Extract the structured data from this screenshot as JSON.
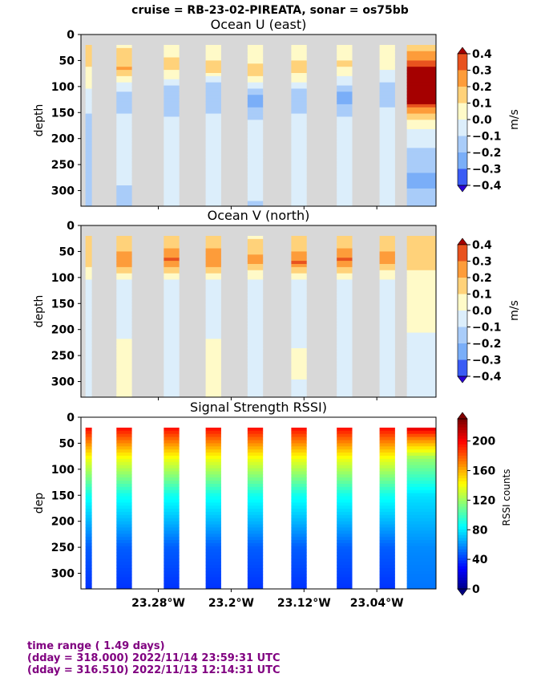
{
  "suptitle": "cruise = RB-23-02-PIREATA,  sonar = os75bb",
  "footer": {
    "line1": "time range ( 1.49 days)",
    "line2": "(dday = 318.000) 2022/11/14 23:59:31 UTC",
    "line3": "(dday = 316.510) 2022/11/13 12:14:31 UTC"
  },
  "colors": {
    "nodata": "#d8d8d8",
    "footer_text": "#800080"
  },
  "chart_data": [
    {
      "type": "heatmap",
      "title": "Ocean U (east)",
      "ylabel": "depth",
      "ylim": [
        330,
        0
      ],
      "yticks": [
        0,
        50,
        100,
        150,
        200,
        250,
        300
      ],
      "xlim": [
        -23.365,
        -22.975
      ],
      "colorbar": {
        "label": "m/s",
        "ticks": [
          "0.4",
          "0.3",
          "0.2",
          "0.1",
          "0.0",
          "−0.1",
          "−0.2",
          "−0.3",
          "−0.4"
        ],
        "levels": [
          -0.4,
          -0.3,
          -0.2,
          -0.1,
          0.0,
          0.1,
          0.2,
          0.3,
          0.4
        ],
        "colors": [
          "#2a00d8",
          "#3a5cf5",
          "#7aaef8",
          "#a9ccf9",
          "#dceefb",
          "#fffac8",
          "#ffd27a",
          "#fd9c3a",
          "#e8521e",
          "#a50000"
        ]
      },
      "segments": [
        {
          "x0": -23.36,
          "x1": -23.353,
          "profile": [
            [
              20,
              0.2
            ],
            [
              80,
              0.05
            ],
            [
              150,
              -0.1
            ],
            [
              330,
              -0.15
            ]
          ]
        },
        {
          "x0": -23.326,
          "x1": -23.309,
          "profile": [
            [
              20,
              0.08
            ],
            [
              50,
              0.15
            ],
            [
              65,
              0.22
            ],
            [
              85,
              0.05
            ],
            [
              110,
              -0.1
            ],
            [
              130,
              -0.2
            ],
            [
              165,
              -0.05
            ],
            [
              290,
              -0.1
            ],
            [
              330,
              -0.15
            ]
          ]
        },
        {
          "x0": -23.274,
          "x1": -23.257,
          "profile": [
            [
              20,
              0.05
            ],
            [
              50,
              0.12
            ],
            [
              62,
              0.16
            ],
            [
              80,
              0.03
            ],
            [
              100,
              -0.13
            ],
            [
              150,
              -0.14
            ],
            [
              170,
              -0.03
            ],
            [
              330,
              -0.04
            ]
          ]
        },
        {
          "x0": -23.228,
          "x1": -23.211,
          "profile": [
            [
              20,
              0.02
            ],
            [
              50,
              0.1
            ],
            [
              65,
              0.18
            ],
            [
              80,
              0.0
            ],
            [
              100,
              -0.2
            ],
            [
              130,
              -0.15
            ],
            [
              175,
              -0.05
            ],
            [
              330,
              -0.05
            ]
          ]
        },
        {
          "x0": -23.182,
          "x1": -23.165,
          "profile": [
            [
              20,
              0.05
            ],
            [
              55,
              0.1
            ],
            [
              68,
              0.2
            ],
            [
              90,
              0.0
            ],
            [
              110,
              -0.15
            ],
            [
              125,
              -0.3
            ],
            [
              150,
              -0.15
            ],
            [
              180,
              -0.05
            ],
            [
              300,
              -0.04
            ],
            [
              330,
              -0.12
            ]
          ]
        },
        {
          "x0": -23.134,
          "x1": -23.117,
          "profile": [
            [
              20,
              0.05
            ],
            [
              50,
              0.1
            ],
            [
              65,
              0.18
            ],
            [
              90,
              0.0
            ],
            [
              110,
              -0.15
            ],
            [
              140,
              -0.16
            ],
            [
              170,
              -0.04
            ],
            [
              330,
              -0.05
            ]
          ]
        },
        {
          "x0": -23.084,
          "x1": -23.067,
          "profile": [
            [
              20,
              0.03
            ],
            [
              50,
              0.1
            ],
            [
              62,
              0.12
            ],
            [
              80,
              0.0
            ],
            [
              100,
              -0.12
            ],
            [
              120,
              -0.25
            ],
            [
              150,
              -0.12
            ],
            [
              175,
              -0.03
            ],
            [
              330,
              -0.05
            ]
          ]
        },
        {
          "x0": -23.037,
          "x1": -23.02,
          "profile": [
            [
              20,
              0.02
            ],
            [
              50,
              0.05
            ],
            [
              80,
              -0.05
            ],
            [
              100,
              -0.15
            ],
            [
              130,
              -0.12
            ],
            [
              175,
              -0.03
            ],
            [
              330,
              -0.04
            ]
          ]
        },
        {
          "x0": -23.007,
          "x1": -22.975,
          "profile": [
            [
              20,
              0.15
            ],
            [
              50,
              0.3
            ],
            [
              70,
              0.45
            ],
            [
              130,
              0.45
            ],
            [
              145,
              0.25
            ],
            [
              165,
              0.1
            ],
            [
              190,
              -0.05
            ],
            [
              240,
              -0.15
            ],
            [
              280,
              -0.22
            ],
            [
              330,
              -0.15
            ]
          ]
        }
      ]
    },
    {
      "type": "heatmap",
      "title": "Ocean V (north)",
      "ylabel": "depth",
      "ylim": [
        330,
        0
      ],
      "yticks": [
        0,
        50,
        100,
        150,
        200,
        250,
        300
      ],
      "xlim": [
        -23.365,
        -22.975
      ],
      "colorbar": {
        "label": "m/s",
        "ticks": [
          "0.4",
          "0.3",
          "0.2",
          "0.1",
          "0.0",
          "−0.1",
          "−0.2",
          "−0.3",
          "−0.4"
        ],
        "levels": [
          -0.4,
          -0.3,
          -0.2,
          -0.1,
          0.0,
          0.1,
          0.2,
          0.3,
          0.4
        ],
        "colors": [
          "#2a00d8",
          "#3a5cf5",
          "#7aaef8",
          "#a9ccf9",
          "#dceefb",
          "#fffac8",
          "#ffd27a",
          "#fd9c3a",
          "#e8521e",
          "#a50000"
        ]
      },
      "segments": [
        {
          "x0": -23.36,
          "x1": -23.353,
          "profile": [
            [
              20,
              0.15
            ],
            [
              60,
              0.2
            ],
            [
              90,
              0.05
            ],
            [
              120,
              -0.05
            ],
            [
              330,
              -0.04
            ]
          ]
        },
        {
          "x0": -23.326,
          "x1": -23.309,
          "profile": [
            [
              20,
              0.1
            ],
            [
              50,
              0.2
            ],
            [
              68,
              0.28
            ],
            [
              90,
              0.1
            ],
            [
              110,
              -0.03
            ],
            [
              330,
              0.03
            ]
          ]
        },
        {
          "x0": -23.274,
          "x1": -23.257,
          "profile": [
            [
              20,
              0.1
            ],
            [
              50,
              0.22
            ],
            [
              66,
              0.32
            ],
            [
              90,
              0.1
            ],
            [
              110,
              -0.04
            ],
            [
              180,
              -0.05
            ],
            [
              330,
              -0.03
            ]
          ]
        },
        {
          "x0": -23.228,
          "x1": -23.211,
          "profile": [
            [
              20,
              0.1
            ],
            [
              50,
              0.22
            ],
            [
              68,
              0.3
            ],
            [
              90,
              0.1
            ],
            [
              110,
              -0.03
            ],
            [
              210,
              -0.03
            ],
            [
              230,
              0.03
            ],
            [
              330,
              0.04
            ]
          ]
        },
        {
          "x0": -23.182,
          "x1": -23.165,
          "profile": [
            [
              20,
              0.08
            ],
            [
              50,
              0.18
            ],
            [
              68,
              0.25
            ],
            [
              90,
              0.08
            ],
            [
              110,
              -0.03
            ],
            [
              330,
              -0.03
            ]
          ]
        },
        {
          "x0": -23.134,
          "x1": -23.117,
          "profile": [
            [
              20,
              0.1
            ],
            [
              50,
              0.2
            ],
            [
              70,
              0.32
            ],
            [
              90,
              0.1
            ],
            [
              110,
              -0.03
            ],
            [
              230,
              -0.03
            ],
            [
              250,
              0.04
            ],
            [
              330,
              -0.03
            ]
          ]
        },
        {
          "x0": -23.084,
          "x1": -23.067,
          "profile": [
            [
              20,
              0.1
            ],
            [
              50,
              0.22
            ],
            [
              68,
              0.32
            ],
            [
              90,
              0.1
            ],
            [
              110,
              -0.04
            ],
            [
              240,
              -0.05
            ],
            [
              330,
              -0.04
            ]
          ]
        },
        {
          "x0": -23.037,
          "x1": -23.02,
          "profile": [
            [
              20,
              0.1
            ],
            [
              50,
              0.2
            ],
            [
              66,
              0.25
            ],
            [
              90,
              0.08
            ],
            [
              110,
              -0.04
            ],
            [
              330,
              -0.03
            ]
          ]
        },
        {
          "x0": -23.007,
          "x1": -22.975,
          "profile": [
            [
              20,
              0.15
            ],
            [
              50,
              0.18
            ],
            [
              80,
              0.12
            ],
            [
              110,
              0.05
            ],
            [
              190,
              0.03
            ],
            [
              230,
              -0.05
            ],
            [
              330,
              -0.06
            ]
          ]
        }
      ]
    },
    {
      "type": "heatmap",
      "title": "Signal Strength RSSI)",
      "ylabel": "dep",
      "ylim": [
        330,
        0
      ],
      "yticks": [
        0,
        50,
        100,
        150,
        200,
        250,
        300
      ],
      "xlim": [
        -23.365,
        -22.975
      ],
      "xticks": [
        {
          "value": -23.28,
          "label": "23.28°W"
        },
        {
          "value": -23.2,
          "label": "23.2°W"
        },
        {
          "value": -23.12,
          "label": "23.12°W"
        },
        {
          "value": -23.04,
          "label": "23.04°W"
        }
      ],
      "colorbar": {
        "label": "RSSI counts",
        "ticks": [
          "200",
          "160",
          "120",
          "80",
          "40",
          "0"
        ],
        "range": [
          0,
          230
        ],
        "colormap": "jet"
      },
      "segments": [
        {
          "x0": -23.36,
          "x1": -23.353,
          "profile": [
            [
              20,
              200
            ],
            [
              45,
              175
            ],
            [
              80,
              140
            ],
            [
              150,
              90
            ],
            [
              250,
              50
            ],
            [
              330,
              40
            ]
          ]
        },
        {
          "x0": -23.326,
          "x1": -23.309,
          "profile": [
            [
              20,
              200
            ],
            [
              45,
              175
            ],
            [
              80,
              140
            ],
            [
              150,
              90
            ],
            [
              250,
              50
            ],
            [
              330,
              40
            ]
          ]
        },
        {
          "x0": -23.274,
          "x1": -23.257,
          "profile": [
            [
              20,
              200
            ],
            [
              45,
              175
            ],
            [
              80,
              140
            ],
            [
              150,
              90
            ],
            [
              250,
              50
            ],
            [
              330,
              40
            ]
          ]
        },
        {
          "x0": -23.228,
          "x1": -23.211,
          "profile": [
            [
              20,
              200
            ],
            [
              45,
              175
            ],
            [
              80,
              140
            ],
            [
              150,
              90
            ],
            [
              250,
              50
            ],
            [
              330,
              40
            ]
          ]
        },
        {
          "x0": -23.182,
          "x1": -23.165,
          "profile": [
            [
              20,
              200
            ],
            [
              45,
              175
            ],
            [
              80,
              140
            ],
            [
              150,
              90
            ],
            [
              250,
              50
            ],
            [
              330,
              40
            ]
          ]
        },
        {
          "x0": -23.134,
          "x1": -23.117,
          "profile": [
            [
              20,
              200
            ],
            [
              45,
              175
            ],
            [
              80,
              140
            ],
            [
              150,
              90
            ],
            [
              250,
              50
            ],
            [
              330,
              40
            ]
          ]
        },
        {
          "x0": -23.084,
          "x1": -23.067,
          "profile": [
            [
              20,
              200
            ],
            [
              45,
              175
            ],
            [
              80,
              140
            ],
            [
              150,
              90
            ],
            [
              250,
              50
            ],
            [
              330,
              40
            ]
          ]
        },
        {
          "x0": -23.037,
          "x1": -23.02,
          "profile": [
            [
              20,
              200
            ],
            [
              45,
              175
            ],
            [
              80,
              140
            ],
            [
              150,
              90
            ],
            [
              250,
              50
            ],
            [
              330,
              40
            ]
          ]
        },
        {
          "x0": -23.007,
          "x1": -22.975,
          "profile": [
            [
              20,
              210
            ],
            [
              40,
              175
            ],
            [
              80,
              120
            ],
            [
              150,
              80
            ],
            [
              250,
              60
            ],
            [
              330,
              55
            ]
          ]
        }
      ]
    }
  ]
}
